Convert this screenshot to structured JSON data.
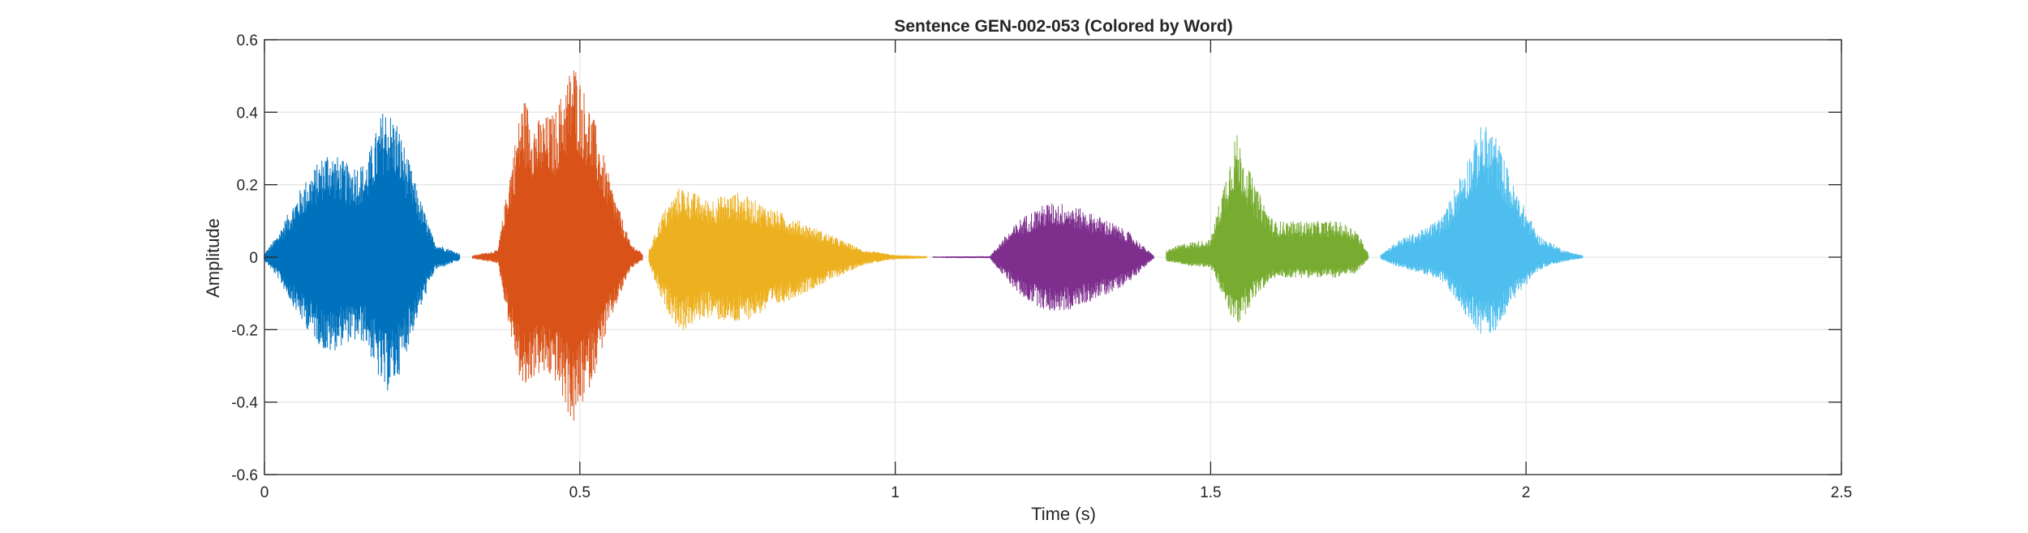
{
  "chart_data": {
    "type": "line",
    "title": "Sentence GEN-002-053 (Colored by Word)",
    "xlabel": "Time (s)",
    "ylabel": "Amplitude",
    "xlim": [
      0,
      2.5
    ],
    "ylim": [
      -0.6,
      0.6
    ],
    "xticks": [
      0,
      0.5,
      1,
      1.5,
      2,
      2.5
    ],
    "xtick_labels": [
      "0",
      "0.5",
      "1",
      "1.5",
      "2",
      "2.5"
    ],
    "yticks": [
      -0.6,
      -0.4,
      -0.2,
      0,
      0.2,
      0.4,
      0.6
    ],
    "ytick_labels": [
      "-0.6",
      "-0.4",
      "-0.2",
      "0",
      "0.2",
      "0.4",
      "0.6"
    ],
    "grid": true,
    "legend": false,
    "series": [
      {
        "color": "#0072BD",
        "t_start": 0.0,
        "t_end": 0.31,
        "envelope": [
          [
            0.0,
            0.01
          ],
          [
            0.02,
            0.06
          ],
          [
            0.06,
            0.2
          ],
          [
            0.1,
            0.3
          ],
          [
            0.13,
            0.26
          ],
          [
            0.16,
            0.26
          ],
          [
            0.19,
            0.42
          ],
          [
            0.21,
            0.38
          ],
          [
            0.24,
            0.2
          ],
          [
            0.27,
            0.04
          ],
          [
            0.31,
            0.01
          ]
        ],
        "peak_max": 0.43,
        "peak_min": -0.39
      },
      {
        "color": "#D95319",
        "t_start": 0.33,
        "t_end": 0.6,
        "envelope": [
          [
            0.33,
            0.005
          ],
          [
            0.37,
            0.02
          ],
          [
            0.39,
            0.25
          ],
          [
            0.41,
            0.45
          ],
          [
            0.43,
            0.38
          ],
          [
            0.46,
            0.4
          ],
          [
            0.49,
            0.55
          ],
          [
            0.52,
            0.4
          ],
          [
            0.55,
            0.2
          ],
          [
            0.58,
            0.04
          ],
          [
            0.6,
            0.01
          ]
        ],
        "peak_max": 0.55,
        "peak_min": -0.47
      },
      {
        "color": "#EDB120",
        "t_start": 0.61,
        "t_end": 1.05,
        "envelope": [
          [
            0.61,
            0.02
          ],
          [
            0.63,
            0.12
          ],
          [
            0.66,
            0.2
          ],
          [
            0.7,
            0.16
          ],
          [
            0.75,
            0.18
          ],
          [
            0.8,
            0.14
          ],
          [
            0.85,
            0.1
          ],
          [
            0.9,
            0.06
          ],
          [
            0.95,
            0.02
          ],
          [
            1.0,
            0.006
          ],
          [
            1.05,
            0.003
          ]
        ],
        "peak_max": 0.24,
        "peak_min": -0.25
      },
      {
        "color": "#7E2F8E",
        "t_start": 1.06,
        "t_end": 1.41,
        "envelope": [
          [
            1.06,
            0.002
          ],
          [
            1.15,
            0.003
          ],
          [
            1.17,
            0.05
          ],
          [
            1.2,
            0.11
          ],
          [
            1.24,
            0.15
          ],
          [
            1.27,
            0.15
          ],
          [
            1.3,
            0.13
          ],
          [
            1.34,
            0.1
          ],
          [
            1.37,
            0.07
          ],
          [
            1.4,
            0.02
          ],
          [
            1.41,
            0.005
          ]
        ],
        "peak_max": 0.15,
        "peak_min": -0.15
      },
      {
        "color": "#77AC30",
        "t_start": 1.43,
        "t_end": 1.75,
        "envelope": [
          [
            1.43,
            0.02
          ],
          [
            1.46,
            0.04
          ],
          [
            1.5,
            0.05
          ],
          [
            1.52,
            0.2
          ],
          [
            1.54,
            0.35
          ],
          [
            1.57,
            0.2
          ],
          [
            1.6,
            0.1
          ],
          [
            1.65,
            0.1
          ],
          [
            1.7,
            0.1
          ],
          [
            1.73,
            0.08
          ],
          [
            1.75,
            0.01
          ]
        ],
        "peak_max": 0.35,
        "peak_min": -0.2
      },
      {
        "color": "#4DBEEE",
        "t_start": 1.77,
        "t_end": 2.09,
        "envelope": [
          [
            1.77,
            0.01
          ],
          [
            1.8,
            0.05
          ],
          [
            1.84,
            0.08
          ],
          [
            1.87,
            0.12
          ],
          [
            1.9,
            0.25
          ],
          [
            1.93,
            0.37
          ],
          [
            1.95,
            0.35
          ],
          [
            1.98,
            0.2
          ],
          [
            2.02,
            0.06
          ],
          [
            2.06,
            0.02
          ],
          [
            2.09,
            0.005
          ]
        ],
        "peak_max": 0.37,
        "peak_min": -0.22
      }
    ]
  }
}
